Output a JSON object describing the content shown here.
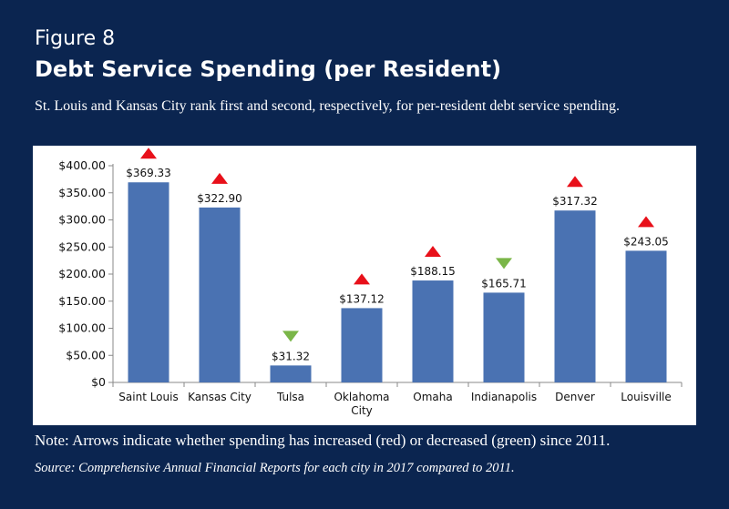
{
  "figure_label": "Figure 8",
  "title": "Debt Service Spending (per Resident)",
  "subtitle": "St. Louis and Kansas City rank first and second, respectively, for per-resident debt service spending.",
  "note": "Note: Arrows indicate whether spending has increased (red) or decreased (green) since 2011.",
  "source": "Source: Comprehensive Annual Financial Reports for each city in 2017 compared to 2011.",
  "colors": {
    "background": "#0b2550",
    "bar": "#4a72b2",
    "increase": "#e8101a",
    "decrease": "#7ab648"
  },
  "chart_data": {
    "type": "bar",
    "categories": [
      "Saint Louis",
      "Kansas City",
      "Tulsa",
      "Oklahoma City",
      "Omaha",
      "Indianapolis",
      "Denver",
      "Louisville"
    ],
    "category_lines": [
      [
        "Saint Louis"
      ],
      [
        "Kansas City"
      ],
      [
        "Tulsa"
      ],
      [
        "Oklahoma",
        "City"
      ],
      [
        "Omaha"
      ],
      [
        "Indianapolis"
      ],
      [
        "Denver"
      ],
      [
        "Louisville"
      ]
    ],
    "values": [
      369.33,
      322.9,
      31.32,
      137.12,
      188.15,
      165.71,
      317.32,
      243.05
    ],
    "data_labels": [
      "$369.33",
      "$322.90",
      "$31.32",
      "$137.12",
      "$188.15",
      "$165.71",
      "$317.32",
      "$243.05"
    ],
    "trend_since_2011": [
      "increase",
      "increase",
      "decrease",
      "increase",
      "increase",
      "decrease",
      "increase",
      "increase"
    ],
    "yticks": [
      0,
      50,
      100,
      150,
      200,
      250,
      300,
      350,
      400
    ],
    "ytick_labels": [
      "$0",
      "$50.00",
      "$100.00",
      "$150.00",
      "$200.00",
      "$250.00",
      "$300.00",
      "$350.00",
      "$400.00"
    ],
    "ylim": [
      0,
      400
    ],
    "xlabel": "",
    "ylabel": "",
    "grid": false,
    "legend": "none"
  }
}
